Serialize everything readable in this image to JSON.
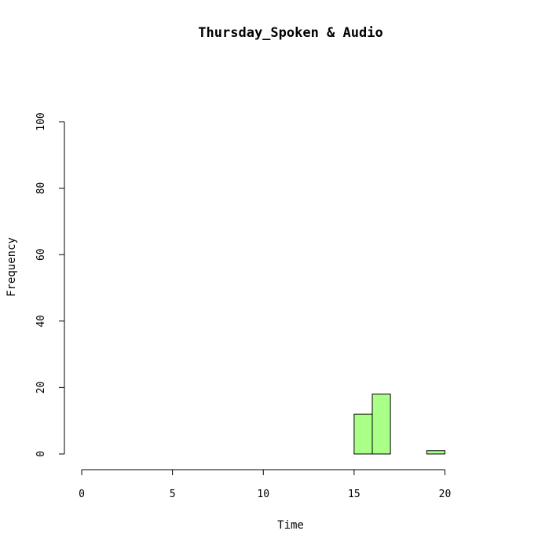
{
  "chart_data": {
    "type": "bar",
    "title": "Thursday_Spoken & Audio",
    "xlabel": "Time",
    "ylabel": "Frequency",
    "bin_width": 1,
    "bins": [
      {
        "start": 0,
        "end": 1,
        "count": 0
      },
      {
        "start": 1,
        "end": 2,
        "count": 0
      },
      {
        "start": 2,
        "end": 3,
        "count": 0
      },
      {
        "start": 3,
        "end": 4,
        "count": 0
      },
      {
        "start": 4,
        "end": 5,
        "count": 0
      },
      {
        "start": 5,
        "end": 6,
        "count": 0
      },
      {
        "start": 6,
        "end": 7,
        "count": 0
      },
      {
        "start": 7,
        "end": 8,
        "count": 0
      },
      {
        "start": 8,
        "end": 9,
        "count": 0
      },
      {
        "start": 9,
        "end": 10,
        "count": 0
      },
      {
        "start": 10,
        "end": 11,
        "count": 0
      },
      {
        "start": 11,
        "end": 12,
        "count": 0
      },
      {
        "start": 12,
        "end": 13,
        "count": 0
      },
      {
        "start": 13,
        "end": 14,
        "count": 0
      },
      {
        "start": 14,
        "end": 15,
        "count": 0
      },
      {
        "start": 15,
        "end": 16,
        "count": 12
      },
      {
        "start": 16,
        "end": 17,
        "count": 18
      },
      {
        "start": 17,
        "end": 18,
        "count": 0
      },
      {
        "start": 18,
        "end": 19,
        "count": 0
      },
      {
        "start": 19,
        "end": 20,
        "count": 1
      },
      {
        "start": 20,
        "end": 21,
        "count": 0
      },
      {
        "start": 21,
        "end": 22,
        "count": 0
      },
      {
        "start": 22,
        "end": 23,
        "count": 0
      },
      {
        "start": 23,
        "end": 24,
        "count": 0
      }
    ],
    "xlim": [
      0,
      24
    ],
    "ylim": [
      0,
      100
    ],
    "x_ticks": [
      0,
      5,
      10,
      15,
      20
    ],
    "y_ticks": [
      0,
      20,
      40,
      60,
      80,
      100
    ],
    "bar_color": "#aaff88",
    "grid": false,
    "legend": "none"
  }
}
